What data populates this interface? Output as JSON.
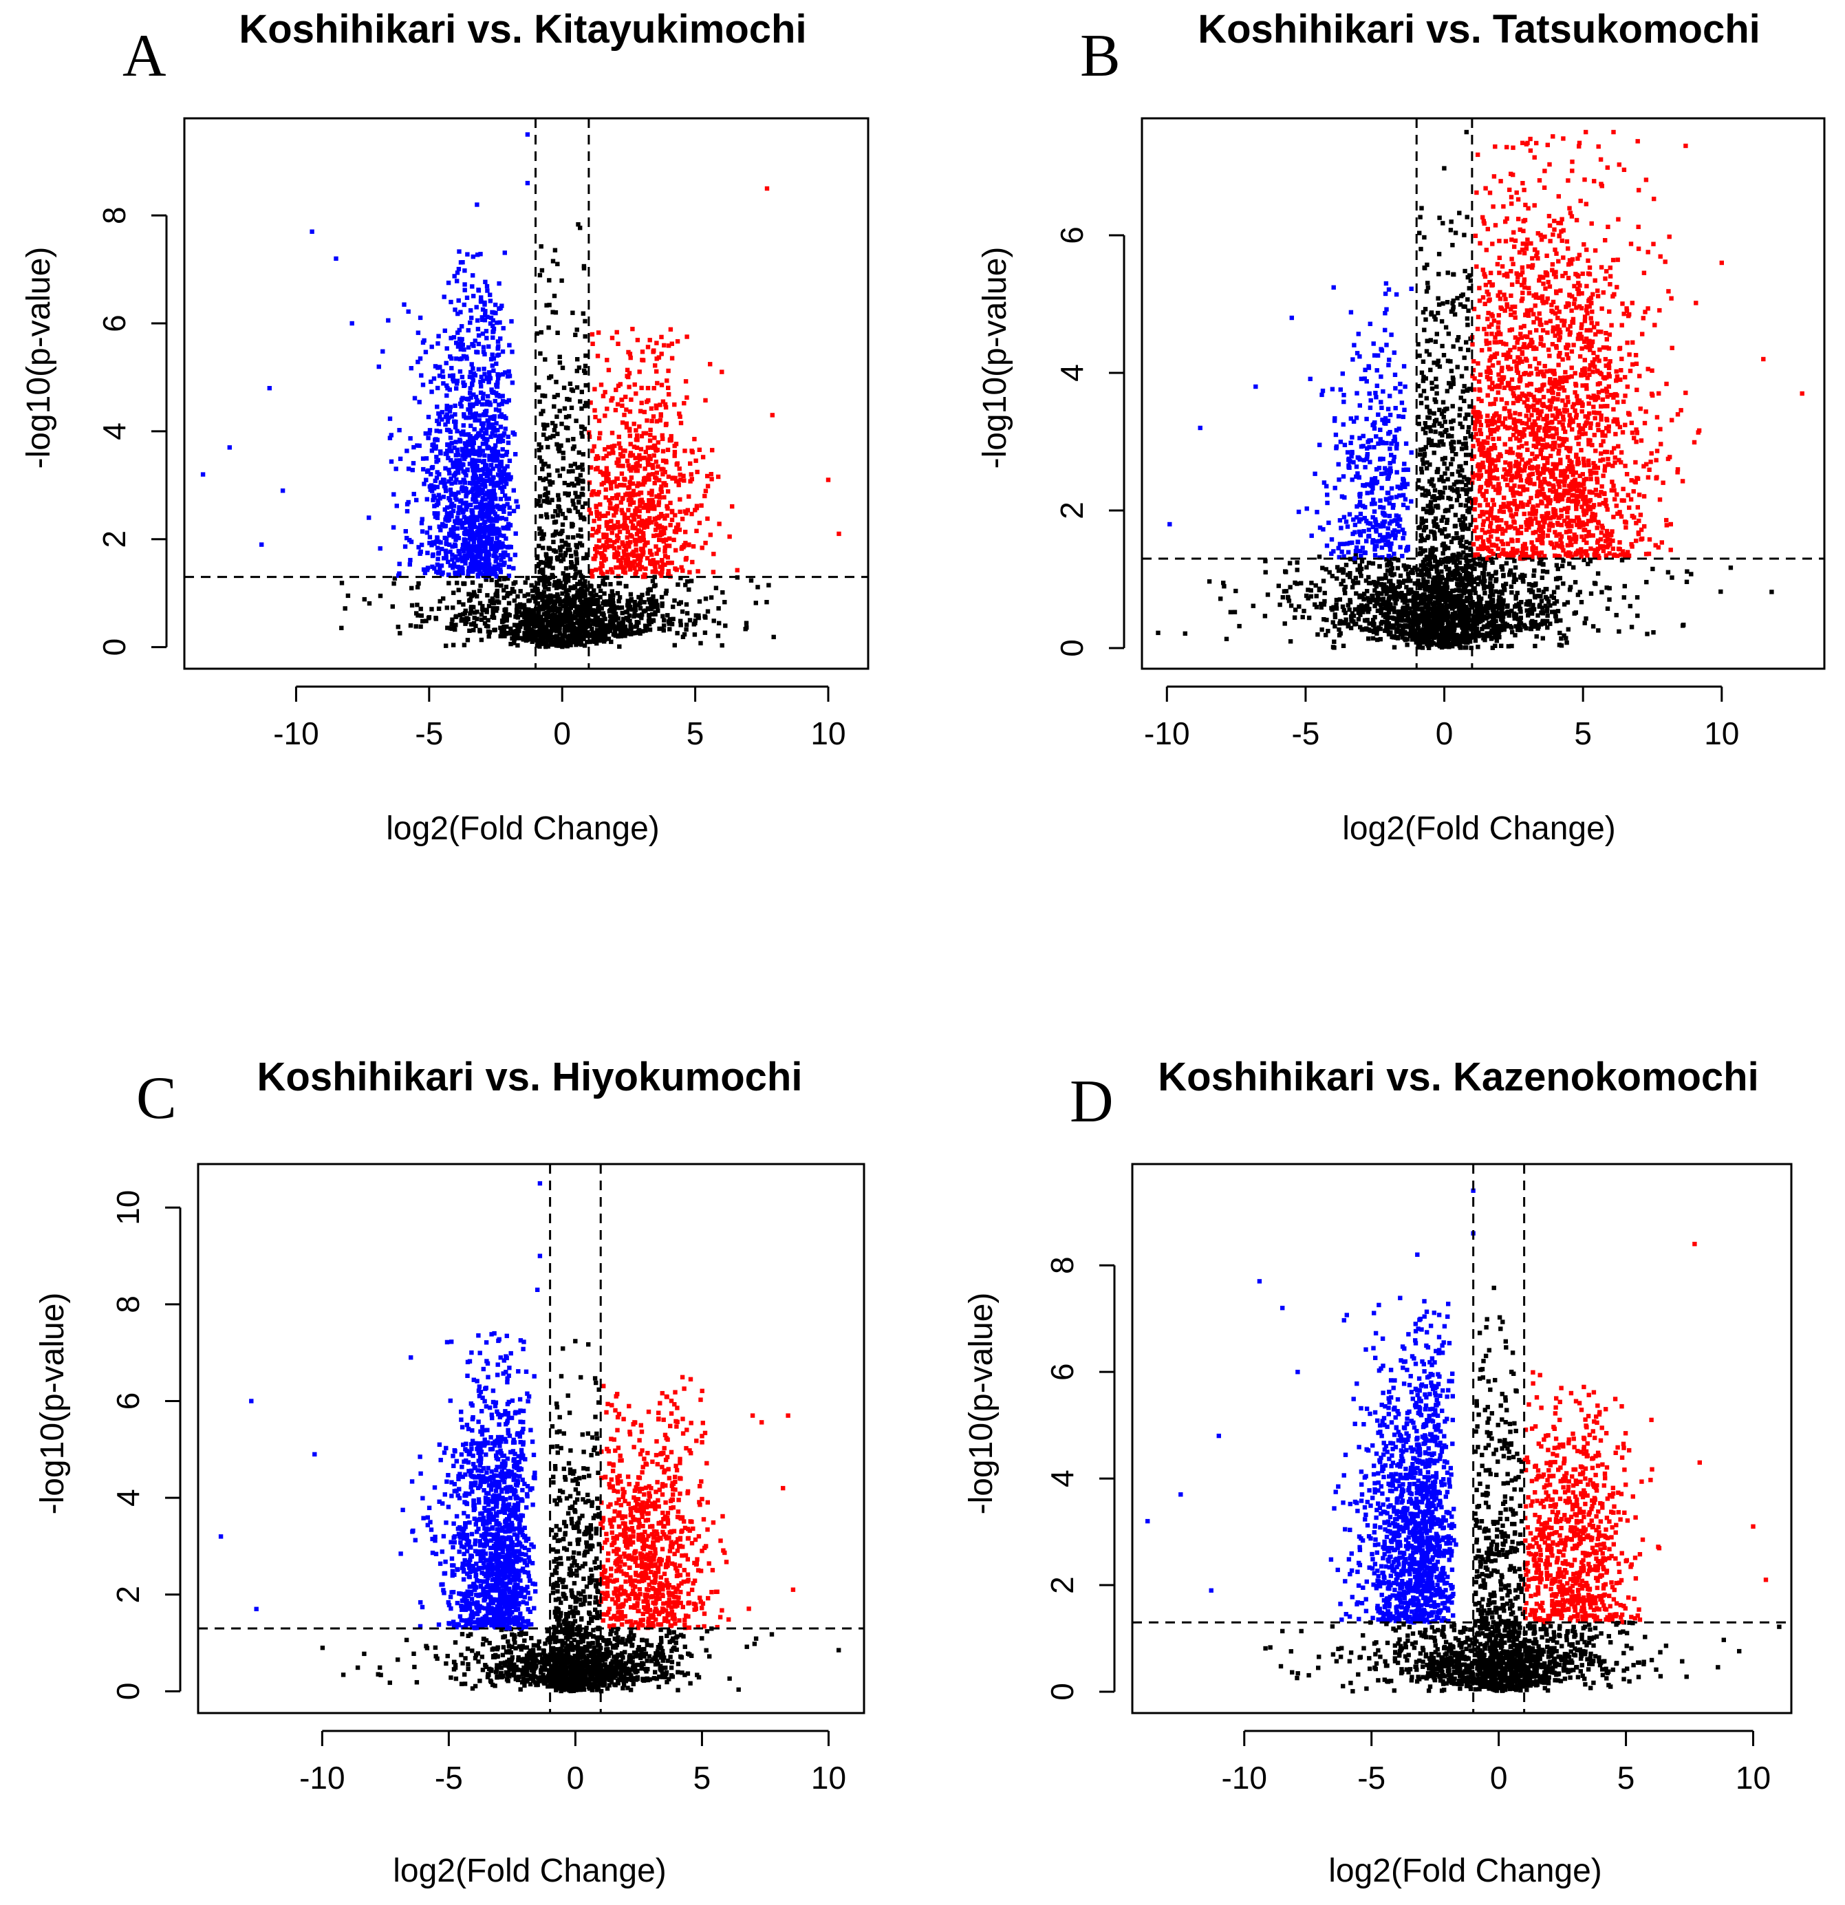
{
  "figure": {
    "colors": {
      "up": "#ff0000",
      "down": "#0000ff",
      "ns": "#000000"
    },
    "thresholds": {
      "log2fc": 1,
      "neglog10p": 1.3
    }
  },
  "chart_data": [
    {
      "type": "scatter",
      "panel": "A",
      "title": "Koshihikari vs. Kitayukimochi",
      "xlabel": "log2(Fold Change)",
      "ylabel": "-log10(p-value)",
      "xlim": [
        -14.2,
        11.5
      ],
      "ylim": [
        -0.4,
        9.8
      ],
      "xticks": [
        -10,
        -5,
        0,
        5,
        10
      ],
      "xtick_labels": [
        "-10",
        "-5",
        "0",
        "5",
        "10"
      ],
      "yticks": [
        0,
        2,
        4,
        6,
        8
      ],
      "ytick_labels": [
        "0",
        "2",
        "4",
        "6",
        "8"
      ],
      "groups": {
        "down": {
          "n": 1300,
          "x_mean": -2.6,
          "x_sd": 1.6,
          "x_range": [
            -14,
            -1
          ],
          "y_max": 7.4
        },
        "up": {
          "n": 750,
          "x_mean": 2.9,
          "x_sd": 1.2,
          "x_range": [
            1,
            10.5
          ],
          "y_max": 6.0
        },
        "ns": {
          "n": 1500,
          "y_max": 7.9
        }
      },
      "outliers": [
        {
          "x": -13.5,
          "y": 3.2
        },
        {
          "x": -12.5,
          "y": 3.7
        },
        {
          "x": -11.3,
          "y": 1.9
        },
        {
          "x": -11.0,
          "y": 4.8
        },
        {
          "x": -10.5,
          "y": 2.9
        },
        {
          "x": -9.4,
          "y": 7.7
        },
        {
          "x": -8.5,
          "y": 7.2
        },
        {
          "x": -7.9,
          "y": 6.0
        },
        {
          "x": -1.3,
          "y": 9.5
        },
        {
          "x": -1.3,
          "y": 8.6
        },
        {
          "x": -3.2,
          "y": 8.2
        },
        {
          "x": 7.7,
          "y": 8.5
        },
        {
          "x": 6.0,
          "y": 5.1
        },
        {
          "x": 7.9,
          "y": 4.3
        },
        {
          "x": 10.0,
          "y": 3.1
        },
        {
          "x": 10.4,
          "y": 2.1
        }
      ]
    },
    {
      "type": "scatter",
      "panel": "B",
      "title": "Koshihikari vs. Tatsukomochi",
      "xlabel": "log2(Fold Change)",
      "ylabel": "-log10(p-value)",
      "xlim": [
        -10.9,
        13.7
      ],
      "ylim": [
        -0.3,
        7.7
      ],
      "xticks": [
        -10,
        -5,
        0,
        5,
        10
      ],
      "xtick_labels": [
        "-10",
        "-5",
        "0",
        "5",
        "10"
      ],
      "yticks": [
        0,
        2,
        4,
        6
      ],
      "ytick_labels": [
        "0",
        "2",
        "4",
        "6"
      ],
      "groups": {
        "down": {
          "n": 380,
          "x_mean": -2.0,
          "x_sd": 1.4,
          "x_range": [
            -10,
            -1
          ],
          "y_max": 5.3
        },
        "up": {
          "n": 1900,
          "x_mean": 3.8,
          "x_sd": 1.8,
          "x_range": [
            1,
            13
          ],
          "y_max": 7.5
        },
        "ns": {
          "n": 2200,
          "y_max": 7.0
        }
      },
      "outliers": [
        {
          "x": -9.9,
          "y": 1.8
        },
        {
          "x": -8.8,
          "y": 3.2
        },
        {
          "x": -6.8,
          "y": 3.8
        },
        {
          "x": -5.5,
          "y": 4.8
        },
        {
          "x": -2.1,
          "y": 5.3
        },
        {
          "x": 0.8,
          "y": 7.5
        },
        {
          "x": 3.1,
          "y": 7.4
        },
        {
          "x": 5.1,
          "y": 7.5
        },
        {
          "x": 6.1,
          "y": 7.5
        },
        {
          "x": 8.7,
          "y": 7.3
        },
        {
          "x": 10.0,
          "y": 5.6
        },
        {
          "x": 11.5,
          "y": 4.2
        },
        {
          "x": 12.9,
          "y": 3.7
        }
      ]
    },
    {
      "type": "scatter",
      "panel": "C",
      "title": "Koshihikari vs. Hiyokumochi",
      "xlabel": "log2(Fold Change)",
      "ylabel": "-log10(p-value)",
      "xlim": [
        -14.9,
        11.4
      ],
      "ylim": [
        -0.45,
        10.9
      ],
      "xticks": [
        -10,
        -5,
        0,
        5,
        10
      ],
      "xtick_labels": [
        "-10",
        "-5",
        "0",
        "5",
        "10"
      ],
      "yticks": [
        0,
        2,
        4,
        6,
        8,
        10
      ],
      "ytick_labels": [
        "0",
        "2",
        "4",
        "6",
        "8",
        "10"
      ],
      "groups": {
        "down": {
          "n": 1300,
          "x_mean": -2.5,
          "x_sd": 1.5,
          "x_range": [
            -14,
            -1
          ],
          "y_max": 7.4
        },
        "up": {
          "n": 800,
          "x_mean": 2.9,
          "x_sd": 1.2,
          "x_range": [
            1,
            8.5
          ],
          "y_max": 6.5
        },
        "ns": {
          "n": 1500,
          "y_max": 7.3
        }
      },
      "outliers": [
        {
          "x": -14.0,
          "y": 3.2
        },
        {
          "x": -12.8,
          "y": 6.0
        },
        {
          "x": -12.6,
          "y": 1.7
        },
        {
          "x": -10.3,
          "y": 4.9
        },
        {
          "x": -6.5,
          "y": 6.9
        },
        {
          "x": -3.2,
          "y": 7.4
        },
        {
          "x": -1.4,
          "y": 10.5
        },
        {
          "x": -1.4,
          "y": 9.0
        },
        {
          "x": -1.5,
          "y": 8.3
        },
        {
          "x": 7.0,
          "y": 5.7
        },
        {
          "x": 8.4,
          "y": 5.7
        },
        {
          "x": 8.2,
          "y": 4.2
        },
        {
          "x": 8.6,
          "y": 2.1
        },
        {
          "x": 10.4,
          "y": 0.85
        }
      ]
    },
    {
      "type": "scatter",
      "panel": "D",
      "title": "Koshihikari vs. Kazenokomochi",
      "xlabel": "log2(Fold Change)",
      "ylabel": "-log10(p-value)",
      "xlim": [
        -14.4,
        11.5
      ],
      "ylim": [
        -0.4,
        9.9
      ],
      "xticks": [
        -10,
        -5,
        0,
        5,
        10
      ],
      "xtick_labels": [
        "-10",
        "-5",
        "0",
        "5",
        "10"
      ],
      "yticks": [
        0,
        2,
        4,
        6,
        8
      ],
      "ytick_labels": [
        "0",
        "2",
        "4",
        "6",
        "8"
      ],
      "groups": {
        "down": {
          "n": 1300,
          "x_mean": -2.6,
          "x_sd": 1.6,
          "x_range": [
            -14,
            -1
          ],
          "y_max": 7.4
        },
        "up": {
          "n": 750,
          "x_mean": 2.9,
          "x_sd": 1.2,
          "x_range": [
            1,
            10.5
          ],
          "y_max": 6.0
        },
        "ns": {
          "n": 1500,
          "y_max": 7.9
        }
      },
      "outliers": [
        {
          "x": -13.8,
          "y": 3.2
        },
        {
          "x": -12.5,
          "y": 3.7
        },
        {
          "x": -11.3,
          "y": 1.9
        },
        {
          "x": -11.0,
          "y": 4.8
        },
        {
          "x": -9.4,
          "y": 7.7
        },
        {
          "x": -8.5,
          "y": 7.2
        },
        {
          "x": -7.9,
          "y": 6.0
        },
        {
          "x": -1.0,
          "y": 9.4
        },
        {
          "x": -1.0,
          "y": 8.6
        },
        {
          "x": -3.2,
          "y": 8.2
        },
        {
          "x": 7.7,
          "y": 8.4
        },
        {
          "x": 6.0,
          "y": 5.1
        },
        {
          "x": 7.9,
          "y": 4.3
        },
        {
          "x": 10.0,
          "y": 3.1
        },
        {
          "x": 10.5,
          "y": 2.1
        }
      ]
    }
  ]
}
